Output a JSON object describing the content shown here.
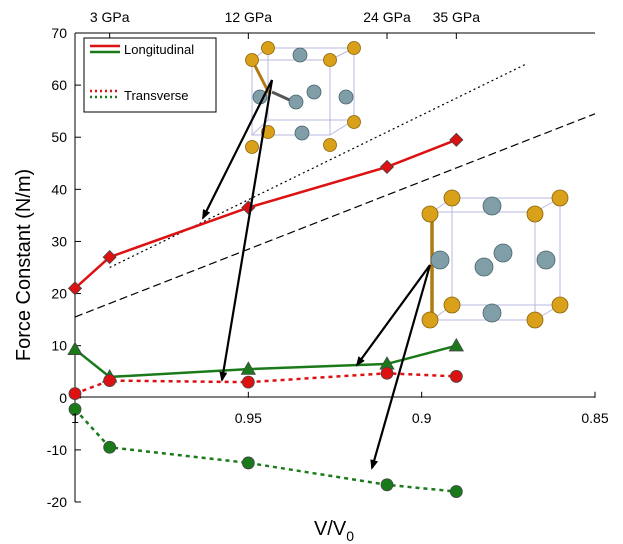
{
  "chart_data": {
    "type": "line",
    "xlabel": "V/V",
    "xlabel_sub": "0",
    "ylabel": "Force Constant (N/m)",
    "xlim": [
      1.0,
      0.85
    ],
    "ylim": [
      -20,
      70
    ],
    "x_reversed": true,
    "x_ticks": [
      1,
      0.95,
      0.9,
      0.85
    ],
    "x_tick_labels": [
      "1",
      "0.95",
      "0.9",
      "0.85"
    ],
    "y_ticks": [
      -20,
      -10,
      0,
      10,
      20,
      30,
      40,
      50,
      60,
      70
    ],
    "top_axis_labels": [
      {
        "x": 0.99,
        "label": "3 GPa"
      },
      {
        "x": 0.95,
        "label": "12 GPa"
      },
      {
        "x": 0.91,
        "label": "24 GPa"
      },
      {
        "x": 0.89,
        "label": "35 GPa"
      }
    ],
    "legend": [
      {
        "label": "Longitudinal",
        "style": "solid"
      },
      {
        "label": "Transverse",
        "style": "dotted"
      }
    ],
    "series": [
      {
        "group": "Longitudinal",
        "color": "#dd1111",
        "dash": "solid",
        "marker": "diamond",
        "x": [
          1.0,
          0.99,
          0.95,
          0.91,
          0.89
        ],
        "y": [
          21,
          27,
          36.5,
          44.3,
          49.5
        ]
      },
      {
        "group": "Longitudinal",
        "color": "#1a7a1a",
        "dash": "solid",
        "marker": "triangle",
        "x": [
          1.0,
          0.99,
          0.95,
          0.91,
          0.89
        ],
        "y": [
          9.3,
          4,
          5.5,
          6.5,
          10
        ]
      },
      {
        "group": "Transverse",
        "color": "#dd1111",
        "dash": "dotted",
        "marker": "circle",
        "x": [
          1.0,
          0.99,
          0.95,
          0.91,
          0.89
        ],
        "y": [
          0.8,
          3.3,
          3,
          4.7,
          4.1
        ]
      },
      {
        "group": "Transverse",
        "color": "#1a7a1a",
        "dash": "dotted",
        "marker": "circle",
        "x": [
          1.0,
          0.99,
          0.95,
          0.91,
          0.89
        ],
        "y": [
          -2.2,
          -9.5,
          -12.5,
          -16.7,
          -18
        ]
      }
    ],
    "reference_lines": [
      {
        "style": "dotted",
        "color": "#000000",
        "x": [
          0.99,
          0.87
        ],
        "y": [
          25,
          64
        ]
      },
      {
        "style": "dashed",
        "color": "#000000",
        "x": [
          1.0,
          0.85
        ],
        "y": [
          15.5,
          54.5
        ]
      }
    ],
    "colors": {
      "longitudinal_red": "#dd1111",
      "longitudinal_green": "#1a7a1a",
      "crystal_gold": "#d9a01a",
      "crystal_blue": "#7f9ea8"
    }
  }
}
